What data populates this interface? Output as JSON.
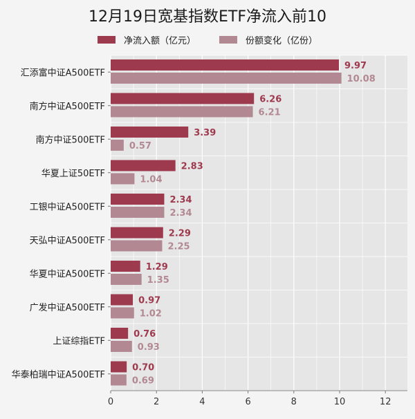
{
  "chart_data": {
    "type": "bar",
    "orientation": "horizontal",
    "title": "12月19日宽基指数ETF净流入前10",
    "categories": [
      "汇添富中证A500ETF",
      "南方中证A500ETF",
      "南方中证500ETF",
      "华夏上证50ETF",
      "工银中证A500ETF",
      "天弘中证A500ETF",
      "华夏中证A500ETF",
      "广发中证A500ETF",
      "上证综指ETF",
      "华泰柏瑞中证A500ETF"
    ],
    "series": [
      {
        "name": "净流入额（亿元）",
        "color": "#9e3a4e",
        "values": [
          9.97,
          6.26,
          3.39,
          2.83,
          2.34,
          2.29,
          1.29,
          0.97,
          0.76,
          0.7
        ]
      },
      {
        "name": "份额变化（亿份）",
        "color": "#b28893",
        "values": [
          10.08,
          6.21,
          0.57,
          1.04,
          2.34,
          2.25,
          1.35,
          1.02,
          0.93,
          0.69
        ]
      }
    ],
    "value_labels_1": [
      "9.97",
      "6.26",
      "3.39",
      "2.83",
      "2.34",
      "2.29",
      "1.29",
      "0.97",
      "0.76",
      "0.70"
    ],
    "value_labels_2": [
      "10.08",
      "6.21",
      "0.57",
      "1.04",
      "2.34",
      "2.25",
      "1.35",
      "1.02",
      "0.93",
      "0.69"
    ],
    "xticks": [
      0,
      2,
      4,
      6,
      8,
      10,
      12
    ],
    "xlim": [
      0,
      13
    ],
    "grid": true,
    "legend_position": "top"
  }
}
